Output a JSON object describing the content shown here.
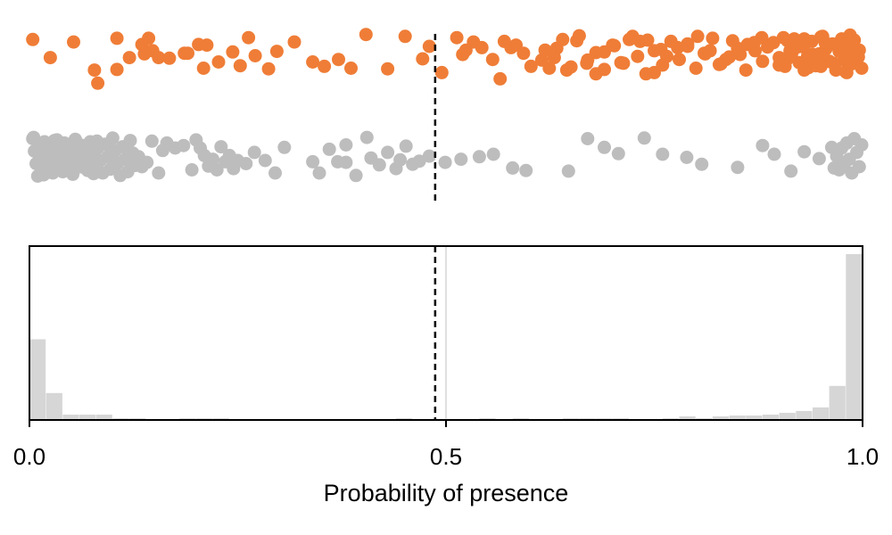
{
  "chart_data": [
    {
      "type": "scatter",
      "subtype": "strip",
      "xlim": [
        0.0,
        1.0
      ],
      "threshold": 0.487,
      "series": [
        {
          "color": "#ef7d37",
          "x": [
            0.004,
            0.025,
            0.053,
            0.078,
            0.082,
            0.105,
            0.12,
            0.105,
            0.135,
            0.148,
            0.138,
            0.155,
            0.143,
            0.168,
            0.186,
            0.19,
            0.203,
            0.209,
            0.213,
            0.227,
            0.244,
            0.253,
            0.263,
            0.271,
            0.287,
            0.297,
            0.318,
            0.34,
            0.354,
            0.371,
            0.386,
            0.404,
            0.43,
            0.451,
            0.472,
            0.48,
            0.495,
            0.52,
            0.513,
            0.524,
            0.533,
            0.543,
            0.556,
            0.565,
            0.57,
            0.578,
            0.584,
            0.593,
            0.602,
            0.615,
            0.619,
            0.624,
            0.633,
            0.645,
            0.657,
            0.669,
            0.68,
            0.69,
            0.702,
            0.713,
            0.724,
            0.733,
            0.742,
            0.75,
            0.758,
            0.765,
            0.778,
            0.79,
            0.802,
            0.811,
            0.817,
            0.828,
            0.836,
            0.844,
            0.853,
            0.862,
            0.871,
            0.879,
            0.886,
            0.893,
            0.9,
            0.907,
            0.913,
            0.918,
            0.924,
            0.929,
            0.934,
            0.939,
            0.944,
            0.948,
            0.952,
            0.956,
            0.96,
            0.964,
            0.968,
            0.972,
            0.975,
            0.978,
            0.981,
            0.984,
            0.987,
            0.99,
            0.993,
            0.996,
            0.999,
            0.905,
            0.915,
            0.925,
            0.935,
            0.945,
            0.955,
            0.965,
            0.975,
            0.985,
            0.995,
            0.9,
            0.91,
            0.92,
            0.93,
            0.94,
            0.95,
            0.96,
            0.97,
            0.98,
            0.99,
            0.91,
            0.93,
            0.95,
            0.97,
            0.99,
            0.88,
            0.87,
            0.86,
            0.85,
            0.84,
            0.83,
            0.82,
            0.81,
            0.8,
            0.79,
            0.78,
            0.77,
            0.76,
            0.75,
            0.74,
            0.73,
            0.72,
            0.71,
            0.7,
            0.69,
            0.68,
            0.67,
            0.66,
            0.65,
            0.64,
            0.63
          ],
          "jitter": [
            0.09,
            0.38,
            0.13,
            0.58,
            0.79,
            0.57,
            0.38,
            0.07,
            0.17,
            0.27,
            0.32,
            0.38,
            0.07,
            0.39,
            0.31,
            0.31,
            0.17,
            0.55,
            0.18,
            0.45,
            0.29,
            0.51,
            0.06,
            0.35,
            0.56,
            0.28,
            0.13,
            0.45,
            0.52,
            0.41,
            0.55,
            0.01,
            0.56,
            0.04,
            0.4,
            0.2,
            0.62,
            0.33,
            0.06,
            0.26,
            0.13,
            0.22,
            0.41,
            0.72,
            0.12,
            0.22,
            0.18,
            0.31,
            0.52,
            0.42,
            0.26,
            0.55,
            0.23,
            0.58,
            0.11,
            0.47,
            0.64,
            0.29,
            0.19,
            0.47,
            0.04,
            0.12,
            0.1,
            0.62,
            0.25,
            0.36,
            0.22,
            0.16,
            0.04,
            0.32,
            0.27,
            0.49,
            0.41,
            0.11,
            0.33,
            0.17,
            0.27,
            0.06,
            0.21,
            0.14,
            0.38,
            0.52,
            0.27,
            0.08,
            0.46,
            0.21,
            0.36,
            0.12,
            0.51,
            0.32,
            0.04,
            0.24,
            0.44,
            0.16,
            0.58,
            0.28,
            0.08,
            0.42,
            0.62,
            0.2,
            0.48,
            0.1,
            0.35,
            0.26,
            0.55,
            0.06,
            0.31,
            0.18,
            0.54,
            0.41,
            0.14,
            0.47,
            0.29,
            0.02,
            0.37,
            0.5,
            0.11,
            0.22,
            0.58,
            0.33,
            0.05,
            0.44,
            0.19,
            0.61,
            0.27,
            0.4,
            0.08,
            0.52,
            0.16,
            0.35,
            0.44,
            0.14,
            0.58,
            0.23,
            0.37,
            0.48,
            0.07,
            0.31,
            0.55,
            0.2,
            0.41,
            0.12,
            0.5,
            0.27,
            0.64,
            0.36,
            0.09,
            0.46,
            0.18,
            0.57,
            0.3,
            0.42,
            0.03,
            0.53
          ]
        },
        {
          "color": "#bdbdbd",
          "x": [
            0.004,
            0.006,
            0.008,
            0.01,
            0.012,
            0.014,
            0.016,
            0.018,
            0.02,
            0.022,
            0.024,
            0.026,
            0.028,
            0.03,
            0.032,
            0.034,
            0.036,
            0.038,
            0.04,
            0.042,
            0.044,
            0.046,
            0.048,
            0.05,
            0.052,
            0.055,
            0.058,
            0.061,
            0.064,
            0.067,
            0.07,
            0.073,
            0.076,
            0.079,
            0.082,
            0.085,
            0.088,
            0.091,
            0.094,
            0.097,
            0.1,
            0.103,
            0.106,
            0.109,
            0.112,
            0.115,
            0.118,
            0.121,
            0.124,
            0.127,
            0.005,
            0.009,
            0.013,
            0.017,
            0.021,
            0.025,
            0.029,
            0.033,
            0.037,
            0.041,
            0.045,
            0.049,
            0.053,
            0.057,
            0.061,
            0.065,
            0.069,
            0.073,
            0.077,
            0.081,
            0.131,
            0.135,
            0.141,
            0.147,
            0.155,
            0.16,
            0.165,
            0.175,
            0.185,
            0.195,
            0.2,
            0.205,
            0.21,
            0.215,
            0.22,
            0.225,
            0.23,
            0.235,
            0.24,
            0.245,
            0.25,
            0.26,
            0.27,
            0.283,
            0.295,
            0.306,
            0.34,
            0.348,
            0.36,
            0.37,
            0.38,
            0.38,
            0.392,
            0.405,
            0.41,
            0.42,
            0.43,
            0.44,
            0.445,
            0.452,
            0.46,
            0.468,
            0.48,
            0.499,
            0.518,
            0.54,
            0.557,
            0.58,
            0.596,
            0.647,
            0.67,
            0.69,
            0.707,
            0.738,
            0.76,
            0.789,
            0.807,
            0.85,
            0.88,
            0.894,
            0.914,
            0.93,
            0.948,
            0.963,
            0.966,
            0.969,
            0.972,
            0.975,
            0.978,
            0.981,
            0.984,
            0.987,
            0.99,
            0.993,
            0.996,
            0.999
          ],
          "jitter": [
            0.05,
            0.25,
            0.45,
            0.65,
            0.15,
            0.35,
            0.55,
            0.1,
            0.3,
            0.5,
            0.2,
            0.4,
            0.6,
            0.08,
            0.28,
            0.48,
            0.18,
            0.38,
            0.58,
            0.12,
            0.32,
            0.52,
            0.22,
            0.42,
            0.62,
            0.06,
            0.26,
            0.46,
            0.16,
            0.36,
            0.56,
            0.1,
            0.3,
            0.5,
            0.2,
            0.4,
            0.6,
            0.14,
            0.34,
            0.54,
            0.04,
            0.24,
            0.44,
            0.64,
            0.18,
            0.38,
            0.58,
            0.08,
            0.28,
            0.48,
            0.03,
            0.23,
            0.43,
            0.63,
            0.13,
            0.33,
            0.53,
            0.07,
            0.27,
            0.47,
            0.17,
            0.37,
            0.57,
            0.11,
            0.31,
            0.51,
            0.21,
            0.41,
            0.61,
            0.09,
            0.34,
            0.5,
            0.43,
            0.09,
            0.6,
            0.24,
            0.12,
            0.2,
            0.16,
            0.55,
            0.07,
            0.2,
            0.32,
            0.49,
            0.38,
            0.55,
            0.18,
            0.42,
            0.32,
            0.53,
            0.4,
            0.45,
            0.27,
            0.4,
            0.6,
            0.19,
            0.42,
            0.6,
            0.22,
            0.42,
            0.15,
            0.43,
            0.64,
            0.03,
            0.36,
            0.47,
            0.27,
            0.53,
            0.39,
            0.17,
            0.46,
            0.41,
            0.33,
            0.43,
            0.38,
            0.34,
            0.3,
            0.52,
            0.56,
            0.57,
            0.05,
            0.19,
            0.29,
            0.04,
            0.3,
            0.35,
            0.46,
            0.51,
            0.16,
            0.3,
            0.57,
            0.26,
            0.37,
            0.19,
            0.52,
            0.33,
            0.55,
            0.2,
            0.45,
            0.12,
            0.38,
            0.6,
            0.05,
            0.27,
            0.5,
            0.15,
            0.42,
            0.31
          ]
        }
      ]
    },
    {
      "type": "bar",
      "subtype": "histogram",
      "xlabel": "Probability of presence",
      "xlim": [
        0.0,
        1.0
      ],
      "xticks": [
        "0.0",
        "0.5",
        "1.0"
      ],
      "threshold": 0.487,
      "bar_color": "#d6d6d6",
      "bin_width": 0.02,
      "values": [
        90,
        30,
        6,
        6,
        6,
        2,
        2,
        0,
        0,
        2,
        2,
        2,
        0,
        0,
        0,
        0,
        0,
        0,
        0,
        0,
        0,
        0,
        2,
        0,
        0,
        0,
        0,
        2,
        0,
        2,
        0,
        0,
        2,
        2,
        2,
        2,
        0,
        0,
        2,
        4,
        2,
        4,
        5,
        5,
        6,
        8,
        10,
        14,
        38,
        185
      ]
    }
  ]
}
